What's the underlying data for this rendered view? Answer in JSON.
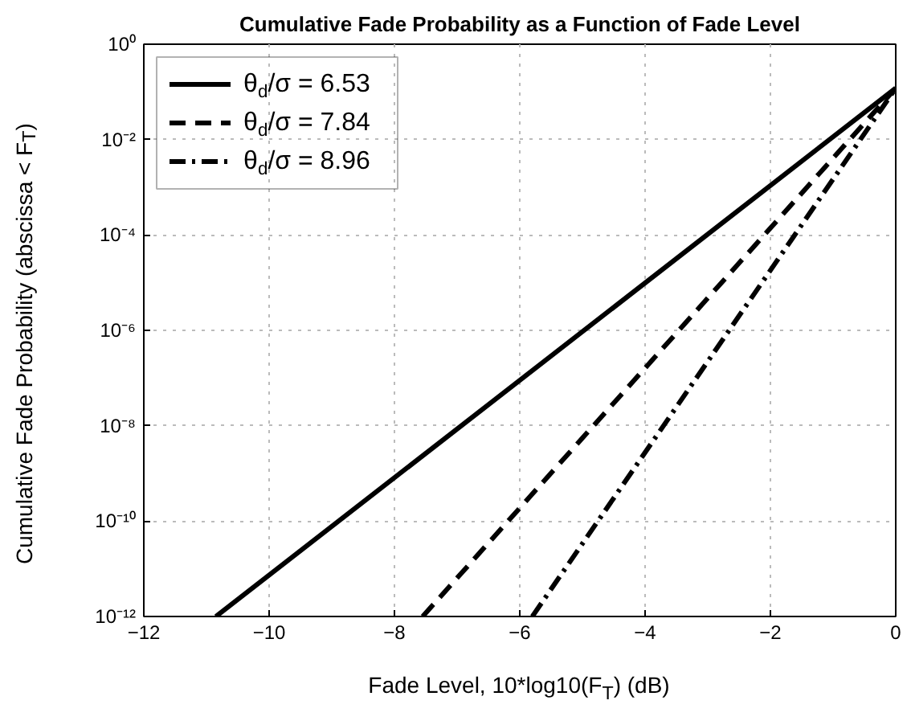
{
  "chart_data": {
    "type": "line",
    "title": "Cumulative Fade Probability as a Function of Fade Level",
    "xlabel": "Fade Level, 10*log10(F$_{T}$) (dB)",
    "ylabel": "Cumulative Fade Probability (abscissa < F$_{T}$)",
    "log": "y",
    "grid": true,
    "legend": "top left",
    "xlim": [
      -12,
      0
    ],
    "xticks": [
      -12,
      -10,
      -8,
      -6,
      -4,
      -2,
      0
    ],
    "ylim": [
      1e-12,
      1
    ],
    "yticks": [
      {
        "value": 1e-12,
        "label": "10⁻¹²"
      },
      {
        "value": 1e-10,
        "label": "10⁻¹⁰"
      },
      {
        "value": 1e-08,
        "label": "10⁻⁸"
      },
      {
        "value": 1e-06,
        "label": "10⁻⁶"
      },
      {
        "value": 0.0001,
        "label": "10⁻⁴"
      },
      {
        "value": 0.01,
        "label": "10⁻²"
      },
      {
        "value": 1,
        "label": "10⁰"
      }
    ],
    "series": [
      {
        "name": "θ$_{d}$/σ = 6.53",
        "color": "#000000",
        "line_style": "solid",
        "x": [
          -10.85,
          0
        ],
        "values": [
          1e-12,
          0.12
        ]
      },
      {
        "name": "θ$_{d}$/σ = 7.84",
        "color": "#000000",
        "line_style": "dashed",
        "x": [
          -7.55,
          0
        ],
        "values": [
          1e-12,
          0.12
        ]
      },
      {
        "name": "θ$_{d}$/σ = 8.96",
        "color": "#000000",
        "line_style": "dashdot",
        "x": [
          -5.8,
          0
        ],
        "values": [
          1e-12,
          0.12
        ]
      }
    ]
  }
}
